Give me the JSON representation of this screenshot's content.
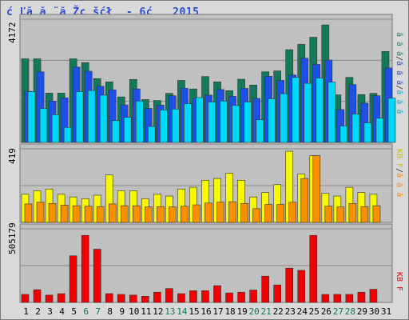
{
  "title": "ć Ľă ă ¨ă Žç šćł  - 6ć   2015",
  "colors": {
    "background": "#d9d9d9",
    "panel": "#c0c0c0",
    "border": "#7a7a7a",
    "title": "#2a4ad0",
    "weekend": "#0e7a5a",
    "weekday": "#000000"
  },
  "right_labels": {
    "top": [
      {
        "text": "ă ă ă",
        "color": "#1a8a5a"
      },
      {
        "text": "/",
        "color": "#333333"
      },
      {
        "text": "ă ă ă",
        "color": "#2a4ad0"
      },
      {
        "text": "/",
        "color": "#333333"
      },
      {
        "text": "ă ă ă",
        "color": "#00b0d8"
      }
    ],
    "middle": [
      {
        "text": "KB F",
        "color": "#d0c000"
      },
      {
        "text": "/",
        "color": "#333333"
      },
      {
        "text": "ă ă ă",
        "color": "#ff8800"
      }
    ],
    "bottom": [
      {
        "text": "KB F",
        "color": "#e00000"
      }
    ]
  },
  "chart_data": {
    "type": "bar",
    "categories": [
      "1",
      "2",
      "3",
      "4",
      "5",
      "6",
      "7",
      "8",
      "9",
      "10",
      "11",
      "12",
      "13",
      "14",
      "15",
      "16",
      "17",
      "18",
      "19",
      "20",
      "21",
      "22",
      "23",
      "24",
      "25",
      "26",
      "27",
      "28",
      "29",
      "30",
      "31"
    ],
    "weekend_days": [
      "6",
      "7",
      "13",
      "14",
      "20",
      "21",
      "27",
      "28"
    ],
    "panels": [
      {
        "ymax_label": "4172",
        "ymax": 4172,
        "series": [
          {
            "color": "#127a5a",
            "values": [
              2830,
              2830,
              1670,
              1670,
              2830,
              2700,
              2160,
              2050,
              1540,
              2130,
              1450,
              1420,
              1660,
              2100,
              1810,
              2230,
              2050,
              1750,
              2140,
              1940,
              2390,
              2420,
              3140,
              3320,
              3560,
              3980,
              1610,
              2200,
              1620,
              1660,
              3080
            ]
          },
          {
            "color": "#1e50e8",
            "values": [
              1730,
              2390,
              1400,
              1510,
              2550,
              2410,
              1900,
              1780,
              1270,
              1810,
              1150,
              1260,
              1580,
              1830,
              1490,
              1600,
              1790,
              1560,
              1830,
              1490,
              2240,
              2100,
              2280,
              2850,
              2640,
              2790,
              1110,
              1960,
              1330,
              1580,
              2520
            ]
          },
          {
            "color": "#00d8f8",
            "values": [
              1720,
              1150,
              940,
              510,
              1720,
              1760,
              1600,
              740,
              850,
              1400,
              540,
              1100,
              1130,
              1310,
              1520,
              1370,
              1400,
              1250,
              1370,
              770,
              1480,
              1650,
              2200,
              2000,
              2180,
              2040,
              560,
              960,
              660,
              820,
              1500
            ]
          }
        ]
      },
      {
        "ymax_label": "419",
        "ymax": 419,
        "series": [
          {
            "color": "#f8f800",
            "values": [
              160,
              180,
              190,
              160,
              145,
              135,
              155,
              270,
              180,
              180,
              135,
              160,
              150,
              190,
              200,
              240,
              250,
              280,
              240,
              145,
              170,
              215,
              405,
              275,
              380,
              165,
              150,
              200,
              170,
              160,
              0
            ]
          },
          {
            "color": "#f89000",
            "values": [
              105,
              115,
              108,
              98,
              95,
              92,
              90,
              105,
              95,
              95,
              88,
              90,
              88,
              92,
              100,
              110,
              115,
              118,
              108,
              78,
              102,
              102,
              115,
              250,
              380,
              92,
              88,
              108,
              90,
              95,
              0
            ]
          }
        ]
      },
      {
        "ymax_label": "505179",
        "ymax": 505179,
        "series": [
          {
            "color": "#f00000",
            "values": [
              55000,
              87000,
              50000,
              60000,
              320000,
              460000,
              365000,
              60000,
              55000,
              50000,
              42000,
              70000,
              95000,
              60000,
              80000,
              80000,
              115000,
              65000,
              70000,
              85000,
              180000,
              120000,
              235000,
              220000,
              460000,
              55000,
              55000,
              55000,
              70000,
              90000,
              0
            ]
          }
        ]
      }
    ]
  }
}
